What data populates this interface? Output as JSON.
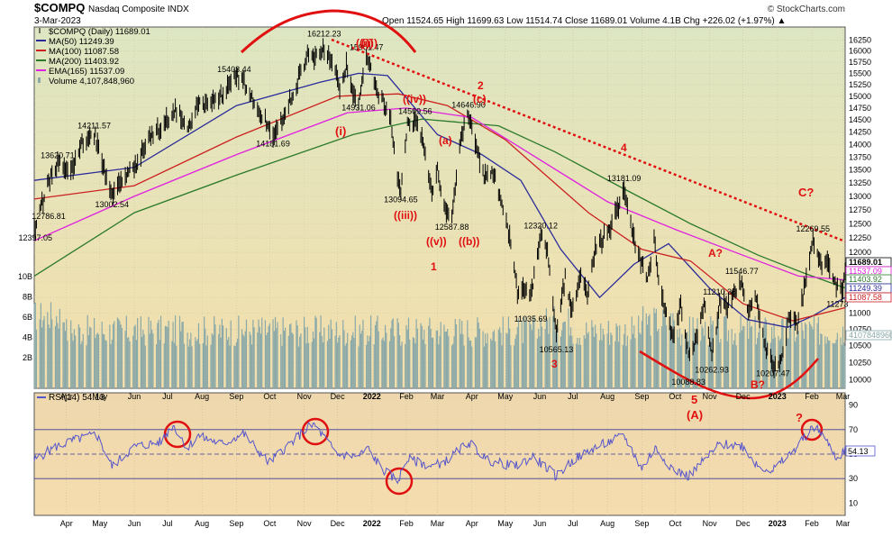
{
  "header": {
    "symbol": "$COMPQ",
    "name": "Nasdaq Composite INDX",
    "date": "3-Mar-2023",
    "watermark": "© StockCharts.com",
    "ohlc": "Open 11524.65   High 11699.63   Low 11514.74   Close 11689.01   Volume 4.1B   Chg +226.02 (+1.97%) ▲"
  },
  "legend": [
    {
      "label": "$COMPQ (Daily) 11689.01",
      "color": "#000000",
      "kind": "ohlc"
    },
    {
      "label": "MA(50) 11249.39",
      "color": "#2b2b9a",
      "kind": "line"
    },
    {
      "label": "MA(100) 11087.58",
      "color": "#cc2020",
      "kind": "line"
    },
    {
      "label": "MA(200) 11403.92",
      "color": "#2a7a2a",
      "kind": "line"
    },
    {
      "label": "EMA(165) 11537.09",
      "color": "#e020e0",
      "kind": "line"
    },
    {
      "label": "Volume 4,107,848,960",
      "color": "#8aa8a8",
      "kind": "bar"
    }
  ],
  "rsi_legend": "RSI(14) 54.13",
  "colors": {
    "price_bg_top": "#dfe6c0",
    "price_bg_bottom": "#f2dfae",
    "rsi_bg": "#f2d8a8",
    "annotation": "#e01010",
    "price": "#000000",
    "volume": "#8aa8a8",
    "rsi": "#5555cc"
  },
  "chart_data": [
    {
      "type": "line",
      "title": "$COMPQ Nasdaq Composite INDX",
      "y_ticks": [
        10000,
        10250,
        10500,
        10750,
        11000,
        11250,
        11500,
        11750,
        12000,
        12250,
        12500,
        12750,
        13000,
        13250,
        13500,
        13750,
        14000,
        14250,
        14500,
        14750,
        15000,
        15250,
        15500,
        15750,
        16000,
        16250
      ],
      "ylim": [
        9880,
        16560
      ],
      "y_scale": "log",
      "x_ticks": [
        "Apr",
        "May",
        "Jun",
        "Jul",
        "Aug",
        "Sep",
        "Oct",
        "Nov",
        "Dec",
        "2022",
        "Feb",
        "Mar",
        "Apr",
        "May",
        "Jun",
        "Jul",
        "Aug",
        "Sep",
        "Oct",
        "Nov",
        "Dec",
        "2023",
        "Feb",
        "Mar"
      ],
      "x_tick_dates": [
        "2021-04-01",
        "2021-05-01",
        "2021-06-01",
        "2021-07-01",
        "2021-08-01",
        "2021-09-01",
        "2021-10-01",
        "2021-11-01",
        "2021-12-01",
        "2022-01-01",
        "2022-02-01",
        "2022-03-01",
        "2022-04-01",
        "2022-05-01",
        "2022-06-01",
        "2022-07-01",
        "2022-08-01",
        "2022-09-01",
        "2022-10-01",
        "2022-11-01",
        "2022-12-01",
        "2023-01-01",
        "2023-02-01",
        "2023-03-01"
      ],
      "xlim": [
        "2021-03-03",
        "2023-03-03"
      ],
      "series": [
        {
          "name": "$COMPQ (Daily)",
          "x": [
            "2021-03-04",
            "2021-03-16",
            "2021-03-24",
            "2021-04-05",
            "2021-04-16",
            "2021-04-26",
            "2021-05-12",
            "2021-05-20",
            "2021-06-04",
            "2021-06-15",
            "2021-06-25",
            "2021-07-08",
            "2021-07-19",
            "2021-07-28",
            "2021-08-19",
            "2021-08-30",
            "2021-09-07",
            "2021-09-20",
            "2021-10-04",
            "2021-10-13",
            "2021-10-25",
            "2021-11-05",
            "2021-11-12",
            "2021-11-19",
            "2021-11-30",
            "2021-12-03",
            "2021-12-09",
            "2021-12-14",
            "2021-12-20",
            "2021-12-27",
            "2022-01-06",
            "2022-01-13",
            "2022-01-18",
            "2022-01-24",
            "2022-01-27",
            "2022-02-02",
            "2022-02-09",
            "2022-02-15",
            "2022-02-24",
            "2022-03-01",
            "2022-03-07",
            "2022-03-14",
            "2022-03-22",
            "2022-03-29",
            "2022-04-06",
            "2022-04-12",
            "2022-04-20",
            "2022-04-28",
            "2022-05-05",
            "2022-05-12",
            "2022-05-19",
            "2022-05-24",
            "2022-06-02",
            "2022-06-08",
            "2022-06-16",
            "2022-06-24",
            "2022-06-30",
            "2022-07-08",
            "2022-07-14",
            "2022-07-21",
            "2022-08-02",
            "2022-08-16",
            "2022-08-26",
            "2022-09-06",
            "2022-09-12",
            "2022-09-16",
            "2022-09-22",
            "2022-09-30",
            "2022-10-06",
            "2022-10-13",
            "2022-10-20",
            "2022-10-27",
            "2022-11-03",
            "2022-11-10",
            "2022-11-17",
            "2022-11-30",
            "2022-12-06",
            "2022-12-13",
            "2022-12-20",
            "2022-12-28",
            "2023-01-05",
            "2023-01-12",
            "2023-01-19",
            "2023-01-26",
            "2023-02-02",
            "2023-02-09",
            "2023-02-17",
            "2023-02-24",
            "2023-03-01",
            "2023-03-03"
          ],
          "values": [
            12397.05,
            13300,
            13620.71,
            13480,
            14050,
            14211.57,
            13002.54,
            13300,
            13650,
            14100,
            14369,
            14700,
            14280,
            14800,
            15000,
            15403.44,
            15374,
            14720,
            14181.69,
            14500,
            15250,
            15950,
            15860,
            16057,
            15537,
            15085,
            15700,
            15100,
            14931.06,
            15871,
            15100,
            14800,
            14506,
            13300,
            13094.65,
            14417,
            14491,
            14140,
            13037,
            13532,
            12830,
            12587.88,
            14109,
            14619,
            13888,
            13372,
            13453,
            12872,
            12318,
            11370,
            11388,
            11264,
            12316,
            12086,
            10646,
            11607,
            11028,
            11635,
            11247,
            12059,
            12348,
            13047,
            12141,
            11544,
            12266,
            11448,
            11066,
            10575,
            11176,
            10321,
            10614,
            11155,
            10342,
            11114,
            11144,
            11468,
            11014,
            11256,
            10547,
            10213,
            10305,
            11001,
            10852,
            11512,
            12200,
            11789,
            11787,
            11394,
            11379,
            11689.01
          ]
        },
        {
          "name": "MA(50)",
          "x": [
            "2021-03-03",
            "2021-06-01",
            "2021-09-01",
            "2021-11-15",
            "2021-12-20",
            "2022-01-15",
            "2022-03-01",
            "2022-04-10",
            "2022-05-15",
            "2022-06-20",
            "2022-07-25",
            "2022-08-25",
            "2022-09-25",
            "2022-11-01",
            "2022-12-05",
            "2023-01-10",
            "2023-02-01",
            "2023-03-03"
          ],
          "values": [
            13300,
            13550,
            14800,
            15300,
            15500,
            15450,
            14200,
            13800,
            13300,
            12050,
            11250,
            11800,
            12150,
            11400,
            10900,
            10780,
            10950,
            11249.39
          ]
        },
        {
          "name": "MA(100)",
          "x": [
            "2021-03-03",
            "2021-06-01",
            "2021-09-01",
            "2021-12-01",
            "2022-01-25",
            "2022-03-10",
            "2022-05-01",
            "2022-07-15",
            "2022-09-01",
            "2022-10-15",
            "2022-12-01",
            "2023-01-15",
            "2023-03-03"
          ],
          "values": [
            12950,
            13200,
            14150,
            15000,
            15050,
            14800,
            14100,
            12700,
            12050,
            11850,
            11150,
            10880,
            11087.58
          ]
        },
        {
          "name": "MA(200)",
          "x": [
            "2021-03-03",
            "2021-06-01",
            "2021-09-01",
            "2021-12-15",
            "2022-02-15",
            "2022-04-25",
            "2022-06-15",
            "2022-08-15",
            "2022-10-15",
            "2022-12-15",
            "2023-01-25",
            "2023-03-03"
          ],
          "values": [
            11600,
            12700,
            13400,
            14200,
            14520,
            14380,
            13850,
            13150,
            12500,
            11950,
            11650,
            11403.92
          ]
        },
        {
          "name": "EMA(165)",
          "x": [
            "2021-03-03",
            "2021-06-01",
            "2021-09-01",
            "2021-12-10",
            "2022-02-01",
            "2022-04-01",
            "2022-06-01",
            "2022-08-01",
            "2022-10-01",
            "2022-12-01",
            "2023-01-20",
            "2023-03-03"
          ],
          "values": [
            12200,
            13000,
            13800,
            14650,
            14750,
            14550,
            13700,
            12900,
            12400,
            11950,
            11600,
            11537.09
          ]
        }
      ],
      "volume": {
        "name": "Volume",
        "last": "4107848960",
        "ticks": [
          "2B",
          "4B",
          "6B",
          "8B",
          "10B"
        ]
      },
      "right_labels": [
        {
          "text": "11689.01",
          "value": 11689.01,
          "color": "#000000"
        },
        {
          "text": "11537.09",
          "value": 11537.09,
          "color": "#e020e0"
        },
        {
          "text": "11403.92",
          "value": 11403.92,
          "color": "#2a7a2a"
        },
        {
          "text": "11249.39",
          "value": 11249.39,
          "color": "#2b2b9a"
        },
        {
          "text": "11087.58",
          "value": 11087.58,
          "color": "#cc2020"
        },
        {
          "text": "4107848960",
          "value": 4107848960,
          "color": "#8aa8a8"
        }
      ],
      "point_labels": [
        {
          "text": "12397.05",
          "date": "2021-03-04",
          "value": 12397.05,
          "pos": "below"
        },
        {
          "text": "12786.81",
          "date": "2021-03-16",
          "value": 12786.81,
          "pos": "below"
        },
        {
          "text": "13620.71",
          "date": "2021-03-24",
          "value": 13620.71,
          "pos": "above"
        },
        {
          "text": "14211.57",
          "date": "2021-04-26",
          "value": 14211.57,
          "pos": "above"
        },
        {
          "text": "13002.54",
          "date": "2021-05-12",
          "value": 13002.54,
          "pos": "below"
        },
        {
          "text": "15403.44",
          "date": "2021-08-30",
          "value": 15403.44,
          "pos": "above"
        },
        {
          "text": "14181.69",
          "date": "2021-10-04",
          "value": 14181.69,
          "pos": "below"
        },
        {
          "text": "16212.23",
          "date": "2021-11-19",
          "value": 16212.23,
          "pos": "above"
        },
        {
          "text": "15901.47",
          "date": "2021-12-27",
          "value": 15901.47,
          "pos": "above"
        },
        {
          "text": "14931.06",
          "date": "2021-12-20",
          "value": 14931.06,
          "pos": "below"
        },
        {
          "text": "14509.56",
          "date": "2022-02-09",
          "value": 14509.56,
          "pos": "above"
        },
        {
          "text": "13094.65",
          "date": "2022-01-27",
          "value": 13094.65,
          "pos": "below"
        },
        {
          "text": "12587.88",
          "date": "2022-03-14",
          "value": 12587.88,
          "pos": "below"
        },
        {
          "text": "14646.90",
          "date": "2022-03-29",
          "value": 14646.9,
          "pos": "above"
        },
        {
          "text": "12320.12",
          "date": "2022-06-02",
          "value": 12320.12,
          "pos": "above"
        },
        {
          "text": "11035.69",
          "date": "2022-05-24",
          "value": 11035.69,
          "pos": "below"
        },
        {
          "text": "10565.13",
          "date": "2022-06-16",
          "value": 10565.13,
          "pos": "below"
        },
        {
          "text": "13181.09",
          "date": "2022-08-16",
          "value": 13181.09,
          "pos": "above"
        },
        {
          "text": "11210.38",
          "date": "2022-11-10",
          "value": 11210.38,
          "pos": "above"
        },
        {
          "text": "10088.83",
          "date": "2022-10-13",
          "value": 10088.83,
          "pos": "below"
        },
        {
          "text": "10262.93",
          "date": "2022-11-03",
          "value": 10262.93,
          "pos": "below"
        },
        {
          "text": "11546.77",
          "date": "2022-11-30",
          "value": 11546.77,
          "pos": "above"
        },
        {
          "text": "10207.47",
          "date": "2022-12-28",
          "value": 10207.47,
          "pos": "below"
        },
        {
          "text": "12269.55",
          "date": "2023-02-02",
          "value": 12269.55,
          "pos": "above"
        },
        {
          "text": "11273",
          "date": "2023-02-24",
          "value": 11273,
          "pos": "below"
        }
      ],
      "annotations": [
        "(i)",
        "((i))",
        "(iii)",
        "((iii))",
        "((iv))",
        "((v))",
        "(a)",
        "(c)",
        "((b))",
        "1",
        "2",
        "3",
        "4",
        "5",
        "(A)",
        "A?",
        "B?",
        "C?",
        "?"
      ]
    },
    {
      "type": "line",
      "title": "RSI(14)",
      "ylim": [
        0,
        100
      ],
      "y_ticks": [
        10,
        30,
        50,
        70,
        90
      ],
      "levels": [
        30,
        50,
        70
      ],
      "last": 54.13,
      "series": [
        {
          "name": "RSI(14)",
          "x": [
            "2021-03-03",
            "2021-03-20",
            "2021-04-10",
            "2021-04-28",
            "2021-05-12",
            "2021-06-01",
            "2021-06-25",
            "2021-07-06",
            "2021-07-19",
            "2021-07-28",
            "2021-08-20",
            "2021-09-07",
            "2021-09-30",
            "2021-10-15",
            "2021-11-05",
            "2021-11-10",
            "2021-11-22",
            "2021-12-01",
            "2021-12-20",
            "2021-12-28",
            "2022-01-10",
            "2022-01-24",
            "2022-02-02",
            "2022-02-24",
            "2022-03-10",
            "2022-03-29",
            "2022-04-15",
            "2022-05-10",
            "2022-05-26",
            "2022-06-16",
            "2022-07-01",
            "2022-07-20",
            "2022-08-16",
            "2022-09-01",
            "2022-09-13",
            "2022-09-30",
            "2022-10-13",
            "2022-10-27",
            "2022-11-10",
            "2022-11-30",
            "2022-12-15",
            "2022-12-28",
            "2023-01-15",
            "2023-02-02",
            "2023-02-09",
            "2023-02-24",
            "2023-03-03"
          ],
          "values": [
            45,
            55,
            62,
            66,
            40,
            56,
            60,
            74,
            55,
            65,
            58,
            67,
            43,
            55,
            72,
            74,
            60,
            50,
            48,
            55,
            38,
            28,
            46,
            40,
            45,
            60,
            45,
            40,
            48,
            32,
            45,
            55,
            65,
            38,
            55,
            37,
            32,
            45,
            58,
            57,
            40,
            37,
            52,
            72,
            68,
            46,
            54.13
          ]
        }
      ]
    }
  ],
  "circles": [
    "rsi-2021-07",
    "rsi-2021-11",
    "rsi-2022-01",
    "rsi-2023-02"
  ]
}
